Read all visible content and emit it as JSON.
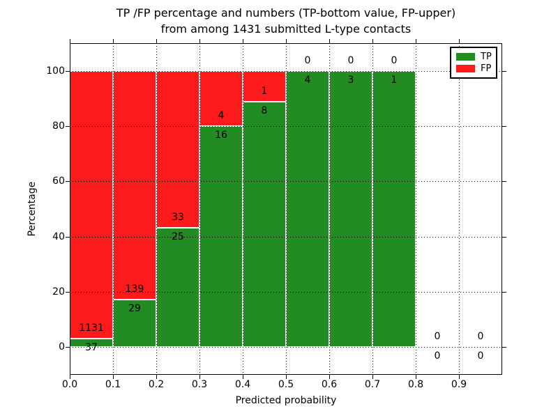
{
  "title": {
    "line1": "TP /FP percentage and numbers (TP-bottom value, FP-upper)",
    "line2": "from among 1431 submitted L-type contacts"
  },
  "x_axis": {
    "label": "Predicted probability",
    "tick_labels": [
      "0.0",
      "0.1",
      "0.2",
      "0.3",
      "0.4",
      "0.5",
      "0.6",
      "0.7",
      "0.8",
      "0.9"
    ]
  },
  "y_axis": {
    "label": "Percentage",
    "tick_labels": [
      "0",
      "20",
      "40",
      "60",
      "80",
      "100"
    ]
  },
  "legend": {
    "items": [
      {
        "label": "TP",
        "color": "#228B22"
      },
      {
        "label": "FP",
        "color": "#FC1A1A"
      }
    ]
  },
  "chart_data": {
    "type": "bar",
    "stacked": true,
    "title": "TP /FP percentage and numbers (TP-bottom value, FP-upper) from among 1431 submitted L-type contacts",
    "xlabel": "Predicted probability",
    "ylabel": "Percentage",
    "xlim": [
      0.0,
      1.0
    ],
    "ylim": [
      -10,
      110
    ],
    "grid": true,
    "legend_position": "upper right",
    "bin_edges": [
      0.0,
      0.1,
      0.2,
      0.3,
      0.4,
      0.5,
      0.6,
      0.7,
      0.8,
      0.9,
      1.0
    ],
    "x_gridlines": [
      0.1,
      0.2,
      0.3,
      0.4,
      0.5,
      0.6,
      0.7,
      0.8,
      0.9
    ],
    "y_gridlines": [
      0,
      20,
      40,
      60,
      80,
      100
    ],
    "series": [
      {
        "name": "TP",
        "color": "#228B22",
        "counts": [
          37,
          29,
          25,
          16,
          8,
          4,
          3,
          1,
          0,
          0
        ],
        "percent": [
          3.17,
          17.26,
          43.1,
          80.0,
          88.89,
          100.0,
          100.0,
          100.0,
          0.0,
          0.0
        ]
      },
      {
        "name": "FP",
        "color": "#FC1A1A",
        "counts": [
          1131,
          139,
          33,
          4,
          1,
          0,
          0,
          0,
          0,
          0
        ],
        "percent": [
          96.83,
          82.74,
          56.9,
          20.0,
          11.11,
          0.0,
          0.0,
          0.0,
          0.0,
          0.0
        ]
      }
    ]
  }
}
